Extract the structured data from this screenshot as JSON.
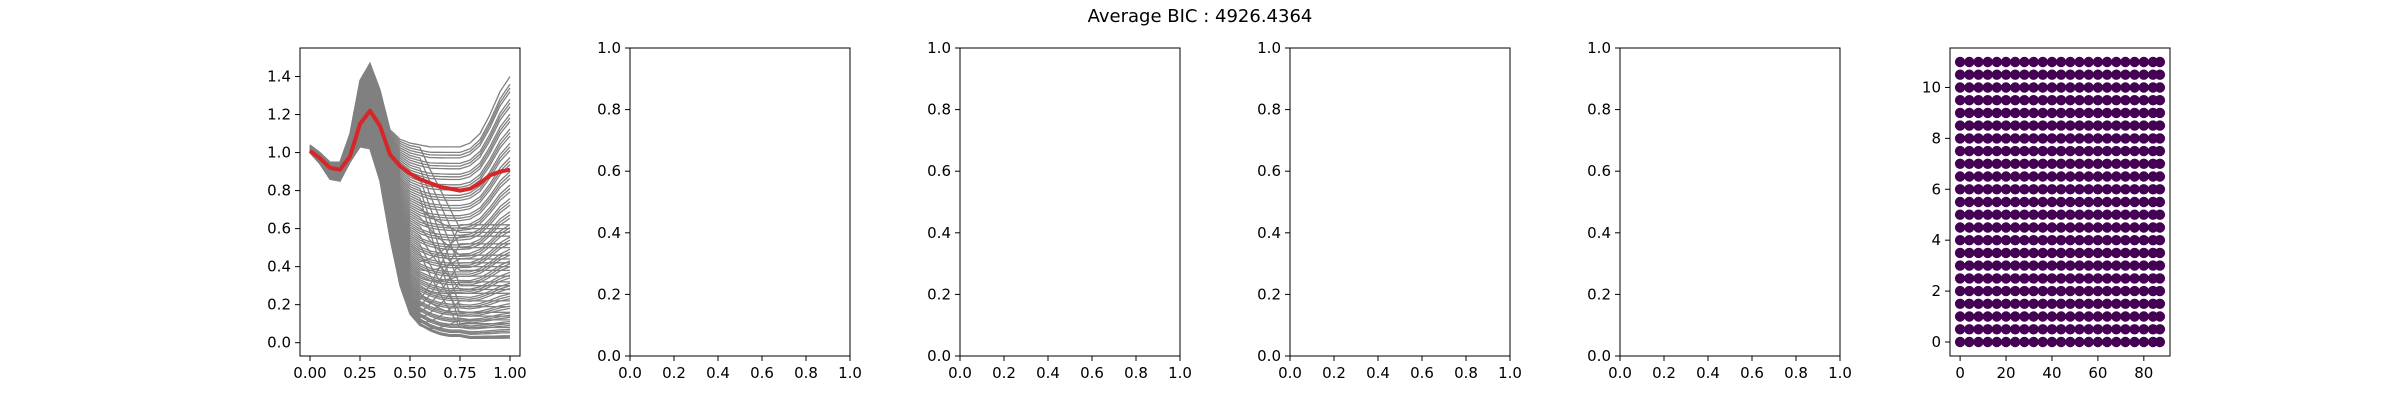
{
  "figure": {
    "title": "Average BIC : 4926.4364"
  },
  "chart_data": [
    {
      "type": "line",
      "title": "",
      "xlabel": "",
      "ylabel": "",
      "xlim": [
        -0.05,
        1.05
      ],
      "ylim": [
        -0.07,
        1.55
      ],
      "xticks": [
        "0.00",
        "0.25",
        "0.50",
        "0.75",
        "1.00"
      ],
      "yticks": [
        "0.0",
        "0.2",
        "0.4",
        "0.6",
        "0.8",
        "1.0",
        "1.2",
        "1.4"
      ],
      "grid": false,
      "colors": {
        "individual_curves": "#808080",
        "mean_curve": "#d62728"
      },
      "series": [
        {
          "role": "individual_curves",
          "count": 90,
          "x": [
            0.0,
            0.05,
            0.1,
            0.15,
            0.2,
            0.25,
            0.3,
            0.35,
            0.4,
            0.45,
            0.5,
            0.55,
            0.6,
            0.65,
            0.7,
            0.75,
            0.8,
            0.85,
            0.9,
            0.95,
            1.0
          ],
          "upper_envelope": [
            1.04,
            1.0,
            0.95,
            0.95,
            1.1,
            1.38,
            1.47,
            1.33,
            1.12,
            1.07,
            1.05,
            1.04,
            1.03,
            1.03,
            1.03,
            1.03,
            1.05,
            1.1,
            1.2,
            1.32,
            1.4
          ],
          "lower_envelope": [
            1.0,
            0.94,
            0.86,
            0.85,
            0.95,
            1.03,
            1.02,
            0.85,
            0.55,
            0.3,
            0.15,
            0.09,
            0.06,
            0.04,
            0.03,
            0.03,
            0.02,
            0.02,
            0.02,
            0.02,
            0.02
          ],
          "end_values": [
            0.62,
            0.6,
            0.58,
            0.56,
            0.52,
            0.5,
            0.46,
            0.44,
            0.42,
            0.4,
            0.38,
            0.35,
            0.32,
            0.3,
            0.28,
            0.26,
            0.22,
            0.19,
            0.16,
            0.14,
            0.12,
            0.1,
            0.08
          ]
        },
        {
          "role": "mean_curve",
          "x": [
            0.0,
            0.05,
            0.1,
            0.15,
            0.2,
            0.25,
            0.3,
            0.35,
            0.4,
            0.45,
            0.5,
            0.55,
            0.6,
            0.65,
            0.7,
            0.75,
            0.8,
            0.85,
            0.9,
            0.95,
            1.0
          ],
          "y": [
            1.01,
            0.97,
            0.92,
            0.91,
            0.98,
            1.15,
            1.22,
            1.14,
            0.99,
            0.93,
            0.89,
            0.86,
            0.84,
            0.82,
            0.81,
            0.8,
            0.81,
            0.84,
            0.88,
            0.9,
            0.91
          ]
        }
      ]
    },
    {
      "type": "line",
      "xlim": [
        0,
        1
      ],
      "ylim": [
        0,
        1
      ],
      "xticks": [
        "0.0",
        "0.2",
        "0.4",
        "0.6",
        "0.8",
        "1.0"
      ],
      "yticks": [
        "0.0",
        "0.2",
        "0.4",
        "0.6",
        "0.8",
        "1.0"
      ],
      "series": []
    },
    {
      "type": "line",
      "xlim": [
        0,
        1
      ],
      "ylim": [
        0,
        1
      ],
      "xticks": [
        "0.0",
        "0.2",
        "0.4",
        "0.6",
        "0.8",
        "1.0"
      ],
      "yticks": [
        "0.0",
        "0.2",
        "0.4",
        "0.6",
        "0.8",
        "1.0"
      ],
      "series": []
    },
    {
      "type": "line",
      "xlim": [
        0,
        1
      ],
      "ylim": [
        0,
        1
      ],
      "xticks": [
        "0.0",
        "0.2",
        "0.4",
        "0.6",
        "0.8",
        "1.0"
      ],
      "yticks": [
        "0.0",
        "0.2",
        "0.4",
        "0.6",
        "0.8",
        "1.0"
      ],
      "series": []
    },
    {
      "type": "line",
      "xlim": [
        0,
        1
      ],
      "ylim": [
        0,
        1
      ],
      "xticks": [
        "0.0",
        "0.2",
        "0.4",
        "0.6",
        "0.8",
        "1.0"
      ],
      "yticks": [
        "0.0",
        "0.2",
        "0.4",
        "0.6",
        "0.8",
        "1.0"
      ],
      "series": []
    },
    {
      "type": "scatter",
      "xlim": [
        -4.4,
        91.4
      ],
      "ylim": [
        -0.55,
        11.55
      ],
      "xticks": [
        "0",
        "20",
        "40",
        "60",
        "80"
      ],
      "yticks": [
        "0",
        "2",
        "4",
        "6",
        "8",
        "10"
      ],
      "colors": {
        "points": "#440154"
      },
      "series": [
        {
          "name": "",
          "x_values": [
            0,
            4,
            8,
            12,
            16,
            20,
            24,
            28,
            32,
            36,
            40,
            44,
            48,
            52,
            56,
            60,
            64,
            68,
            72,
            76,
            80,
            84,
            87
          ],
          "y_values": [
            0,
            0.5,
            1,
            1.5,
            2,
            2.5,
            3,
            3.5,
            4,
            4.5,
            5,
            5.5,
            6,
            6.5,
            7,
            7.5,
            8,
            8.5,
            9,
            9.5,
            10,
            10.5,
            11
          ]
        }
      ]
    }
  ]
}
